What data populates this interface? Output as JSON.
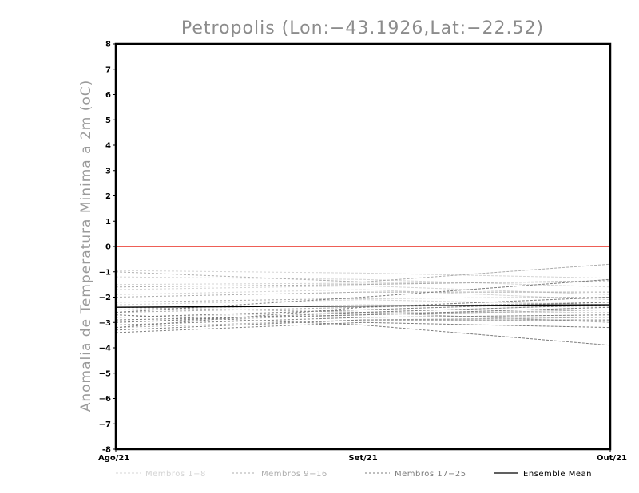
{
  "chart_data": {
    "type": "line",
    "title": "Petropolis (Lon:−43.1926,Lat:−22.52)",
    "xlabel": "",
    "ylabel": "Anomalia de Temperatura Minima a 2m (oC)",
    "x": [
      "Ago/21",
      "Set/21",
      "Out/21"
    ],
    "ylim": [
      -8,
      8
    ],
    "yticks": [
      "-8",
      "−7",
      "−6",
      "−5",
      "−4",
      "−3",
      "−2",
      "−1",
      "0",
      "1",
      "2",
      "3",
      "4",
      "5",
      "6",
      "7",
      "8"
    ],
    "reference_line": {
      "y": 0,
      "color": "#e8281e"
    },
    "grid": false,
    "legend_position": "bottom",
    "legend": [
      {
        "label": "Membros 1−8",
        "color": "#d4d4d4",
        "style": "dashed"
      },
      {
        "label": "Membros 9−16",
        "color": "#acacac",
        "style": "dashed"
      },
      {
        "label": "Membros 17−25",
        "color": "#7c7c7c",
        "style": "dashed"
      },
      {
        "label": "Ensemble Mean",
        "color": "#000000",
        "style": "solid"
      }
    ],
    "groups": [
      {
        "label": "Membros 1−8",
        "color": "#d4d4d4",
        "style": "dashed",
        "members": [
          [
            -0.95,
            -1.05,
            -1.25
          ],
          [
            -1.5,
            -1.45,
            -1.4
          ],
          [
            -1.7,
            -1.55,
            -1.9
          ],
          [
            -1.9,
            -1.7,
            -2.1
          ],
          [
            -2.3,
            -2.1,
            -2.3
          ],
          [
            -2.5,
            -2.3,
            -2.4
          ],
          [
            -2.8,
            -2.6,
            -2.6
          ],
          [
            -1.2,
            -1.3,
            -1.6
          ]
        ]
      },
      {
        "label": "Membros 9−16",
        "color": "#acacac",
        "style": "dashed",
        "members": [
          [
            -1.0,
            -1.4,
            -0.7
          ],
          [
            -1.6,
            -1.5,
            -1.35
          ],
          [
            -2.0,
            -1.8,
            -1.8
          ],
          [
            -2.2,
            -2.05,
            -2.0
          ],
          [
            -2.6,
            -2.4,
            -2.2
          ],
          [
            -3.0,
            -2.7,
            -2.5
          ],
          [
            -3.2,
            -2.9,
            -2.8
          ],
          [
            -2.4,
            -2.6,
            -3.0
          ]
        ]
      },
      {
        "label": "Membros 17−25",
        "color": "#7c7c7c",
        "style": "dashed",
        "members": [
          [
            -2.7,
            -3.1,
            -3.9
          ],
          [
            -3.4,
            -3.0,
            -3.2
          ],
          [
            -3.3,
            -2.9,
            -2.9
          ],
          [
            -3.1,
            -2.8,
            -2.7
          ],
          [
            -2.9,
            -2.7,
            -2.4
          ],
          [
            -3.0,
            -2.6,
            -2.3
          ],
          [
            -2.8,
            -2.5,
            -2.2
          ],
          [
            -3.2,
            -2.4,
            -2.0
          ],
          [
            -2.6,
            -2.0,
            -1.3
          ]
        ]
      }
    ],
    "ensemble_mean": {
      "label": "Ensemble Mean",
      "color": "#000000",
      "values": [
        -2.4,
        -2.35,
        -2.3
      ]
    }
  }
}
